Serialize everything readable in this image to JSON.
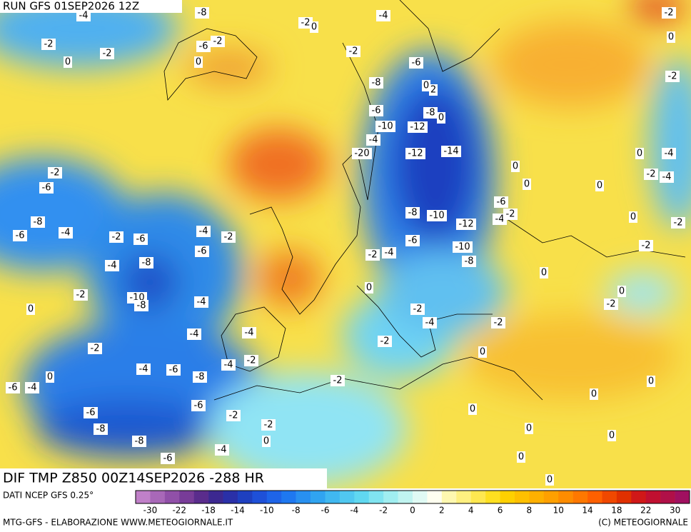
{
  "header": {
    "run": "RUN GFS 01SEP2026 12Z"
  },
  "map": {
    "title": "DIF TMP Z850 00Z14SEP2026 -288 HR",
    "contour_labels": [
      -4,
      -8,
      -2,
      -2,
      0,
      -2,
      -6,
      0,
      -2,
      0,
      -4,
      -2,
      -6,
      -8,
      0,
      2,
      -6,
      -8,
      0,
      -10,
      -12,
      -4,
      -20,
      -12,
      -14,
      -2,
      -6,
      -8,
      -6,
      -4,
      -2,
      -6,
      -4,
      -2,
      -6,
      -4,
      -8,
      -2,
      -10,
      -8,
      0,
      -4,
      -4,
      -4,
      -2,
      -4,
      -6,
      -8,
      -4,
      -2,
      0,
      -6,
      -4,
      -6,
      -8,
      -6,
      -2,
      -8,
      -2,
      -6,
      -4,
      0,
      -2,
      0,
      0,
      0,
      0,
      0,
      0,
      0,
      0,
      -2,
      -4,
      -2,
      -2,
      0,
      -2,
      -4,
      -6,
      -8,
      -10,
      -12,
      -10,
      -8,
      -6,
      -4,
      -2,
      0,
      0,
      0,
      0,
      -2,
      -2,
      0,
      0,
      -2,
      -4,
      -2,
      -4,
      0,
      -2,
      0,
      -2
    ]
  },
  "colorbar": {
    "ticks": [
      -30,
      -22,
      -18,
      -14,
      -10,
      -8,
      -6,
      -4,
      -2,
      0,
      2,
      4,
      6,
      8,
      10,
      14,
      18,
      22,
      30
    ],
    "colors": [
      "#c080c8",
      "#a868b8",
      "#9050a8",
      "#783c98",
      "#5a2c8c",
      "#3c2890",
      "#2a30a8",
      "#1e40c0",
      "#1e50d8",
      "#1e64e8",
      "#1e78f0",
      "#2890f0",
      "#30a4f0",
      "#40b8f0",
      "#50c8f0",
      "#60d8f0",
      "#80e4f0",
      "#a0eef0",
      "#c0f4f0",
      "#e0faf4",
      "#fffff0",
      "#fff8b0",
      "#fff080",
      "#ffe850",
      "#ffe020",
      "#ffd000",
      "#ffc000",
      "#ffb000",
      "#ffa000",
      "#ff8c00",
      "#ff7800",
      "#ff6000",
      "#f04800",
      "#e03000",
      "#d01818",
      "#c01030",
      "#b01048",
      "#a01060"
    ]
  },
  "footer": {
    "source": "DATI NCEP GFS 0.25°",
    "credit": "MTG-GFS - ELABORAZIONE WWW.METEOGIORNALE.IT",
    "copyright": "(C) METEOGIORNALE"
  }
}
